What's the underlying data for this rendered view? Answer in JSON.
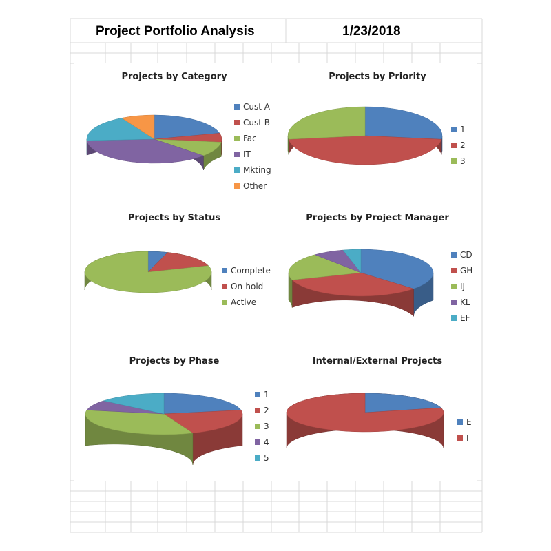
{
  "header": {
    "title": "Project Portfolio Analysis",
    "date": "1/23/2018"
  },
  "palette": {
    "blue": "#4F81BD",
    "red": "#C0504D",
    "green": "#9BBB59",
    "purple": "#8064A2",
    "teal": "#4BACC6",
    "orange": "#F79646",
    "grid": "#d9d9d9"
  },
  "chart_data": [
    {
      "type": "pie",
      "title": "Projects by Category",
      "legend_position": "right",
      "slices": [
        {
          "label": "Cust A",
          "value": 21,
          "color": "#4F81BD"
        },
        {
          "label": "Cust B",
          "value": 6,
          "color": "#C0504D"
        },
        {
          "label": "Fac",
          "value": 10,
          "color": "#9BBB59"
        },
        {
          "label": "IT",
          "value": 37,
          "color": "#8064A2"
        },
        {
          "label": "Mkting",
          "value": 18,
          "color": "#4BACC6"
        },
        {
          "label": "Other",
          "value": 8,
          "color": "#F79646"
        }
      ]
    },
    {
      "type": "pie",
      "title": "Projects by Priority",
      "legend_position": "right",
      "slices": [
        {
          "label": "1",
          "value": 27,
          "color": "#4F81BD"
        },
        {
          "label": "2",
          "value": 46,
          "color": "#C0504D"
        },
        {
          "label": "3",
          "value": 27,
          "color": "#9BBB59"
        }
      ]
    },
    {
      "type": "pie",
      "title": "Projects by Status",
      "legend_position": "right",
      "slices": [
        {
          "label": "Complete",
          "value": 5,
          "color": "#4F81BD"
        },
        {
          "label": "On-hold",
          "value": 15,
          "color": "#C0504D"
        },
        {
          "label": "Active",
          "value": 80,
          "color": "#9BBB59"
        }
      ]
    },
    {
      "type": "pie",
      "title": "Projects by Project Manager",
      "legend_position": "right",
      "slices": [
        {
          "label": "CD",
          "value": 37,
          "color": "#4F81BD"
        },
        {
          "label": "GH",
          "value": 33,
          "color": "#C0504D"
        },
        {
          "label": "IJ",
          "value": 19,
          "color": "#9BBB59"
        },
        {
          "label": "KL",
          "value": 7,
          "color": "#8064A2"
        },
        {
          "label": "EF",
          "value": 4,
          "color": "#4BACC6"
        }
      ]
    },
    {
      "type": "pie",
      "title": "Projects by Phase",
      "legend_position": "right",
      "slices": [
        {
          "label": "1",
          "value": 22,
          "color": "#4F81BD"
        },
        {
          "label": "2",
          "value": 22,
          "color": "#C0504D"
        },
        {
          "label": "3",
          "value": 34,
          "color": "#9BBB59"
        },
        {
          "label": "4",
          "value": 8,
          "color": "#8064A2"
        },
        {
          "label": "5",
          "value": 14,
          "color": "#4BACC6"
        }
      ]
    },
    {
      "type": "pie",
      "title": "Internal/External Projects",
      "legend_position": "right",
      "slices": [
        {
          "label": "E",
          "value": 21,
          "color": "#4F81BD"
        },
        {
          "label": "I",
          "value": 79,
          "color": "#C0504D"
        }
      ]
    }
  ]
}
